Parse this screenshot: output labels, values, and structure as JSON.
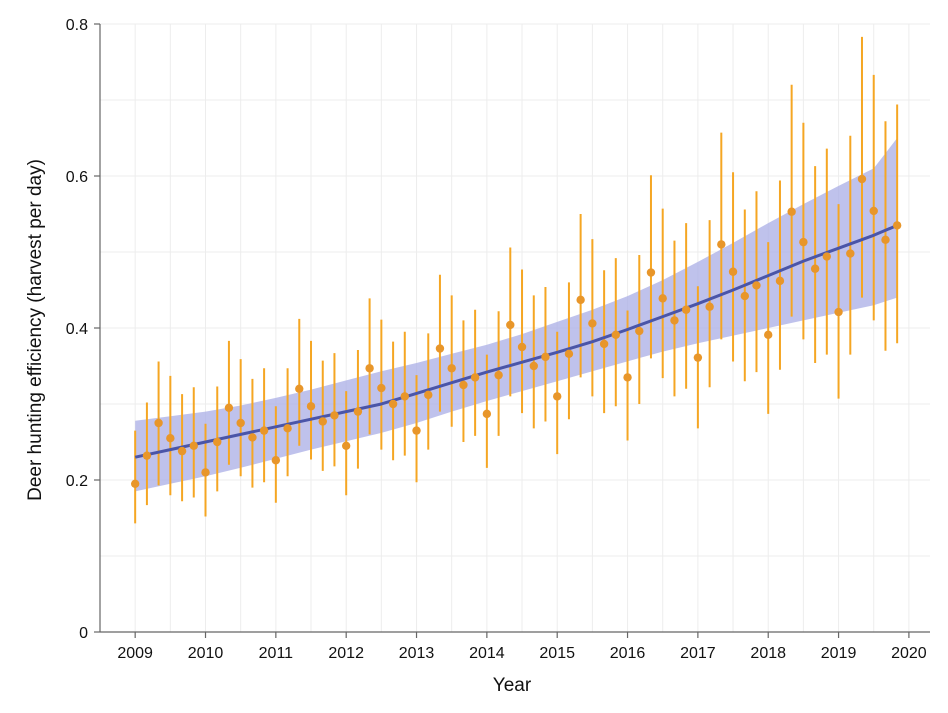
{
  "chart_data": {
    "type": "scatter",
    "xlabel": "Year",
    "ylabel": "Deer hunting efficiency (harvest per day)",
    "xlim": [
      2008.5,
      2020.3
    ],
    "ylim": [
      0,
      0.8
    ],
    "x_ticks": [
      2009,
      2010,
      2011,
      2012,
      2013,
      2014,
      2015,
      2016,
      2017,
      2018,
      2019,
      2020
    ],
    "x_tick_labels": [
      "2009",
      "2010",
      "2011",
      "2012",
      "2013",
      "2014",
      "2015",
      "2016",
      "2017",
      "2018",
      "2019",
      "2020"
    ],
    "y_ticks": [
      0,
      0.2,
      0.4,
      0.6,
      0.8
    ],
    "y_tick_labels": [
      "0",
      "0.2",
      "0.4",
      "0.6",
      "0.8"
    ],
    "grid": true,
    "colors": {
      "points": "#E8962A",
      "errorbars": "#F5A623",
      "trend": "#4A55A8",
      "band": "#A9AEE6",
      "grid": "#EDEDED",
      "axis": "#666666"
    },
    "series": [
      {
        "kind": "observations",
        "x": [
          2009.0,
          2009.167,
          2009.333,
          2009.5,
          2009.667,
          2009.833,
          2010.0,
          2010.167,
          2010.333,
          2010.5,
          2010.667,
          2010.833,
          2011.0,
          2011.167,
          2011.333,
          2011.5,
          2011.667,
          2011.833,
          2012.0,
          2012.167,
          2012.333,
          2012.5,
          2012.667,
          2012.833,
          2013.0,
          2013.167,
          2013.333,
          2013.5,
          2013.667,
          2013.833,
          2014.0,
          2014.167,
          2014.333,
          2014.5,
          2014.667,
          2014.833,
          2015.0,
          2015.167,
          2015.333,
          2015.5,
          2015.667,
          2015.833,
          2016.0,
          2016.167,
          2016.333,
          2016.5,
          2016.667,
          2016.833,
          2017.0,
          2017.167,
          2017.333,
          2017.5,
          2017.667,
          2017.833,
          2018.0,
          2018.167,
          2018.333,
          2018.5,
          2018.667,
          2018.833,
          2019.0,
          2019.167,
          2019.333,
          2019.5,
          2019.667,
          2019.833
        ],
        "y": [
          0.195,
          0.232,
          0.275,
          0.255,
          0.238,
          0.245,
          0.21,
          0.25,
          0.295,
          0.275,
          0.256,
          0.265,
          0.226,
          0.268,
          0.32,
          0.297,
          0.277,
          0.285,
          0.245,
          0.29,
          0.347,
          0.321,
          0.3,
          0.31,
          0.265,
          0.312,
          0.373,
          0.347,
          0.325,
          0.335,
          0.287,
          0.338,
          0.404,
          0.375,
          0.35,
          0.362,
          0.31,
          0.366,
          0.437,
          0.406,
          0.379,
          0.391,
          0.335,
          0.396,
          0.473,
          0.439,
          0.41,
          0.424,
          0.361,
          0.428,
          0.51,
          0.474,
          0.442,
          0.456,
          0.391,
          0.462,
          0.553,
          0.513,
          0.478,
          0.494,
          0.421,
          0.498,
          0.596,
          0.554,
          0.516,
          0.535
        ],
        "low": [
          0.143,
          0.167,
          0.193,
          0.18,
          0.172,
          0.177,
          0.152,
          0.185,
          0.22,
          0.205,
          0.19,
          0.197,
          0.17,
          0.205,
          0.245,
          0.227,
          0.212,
          0.218,
          0.18,
          0.215,
          0.26,
          0.24,
          0.226,
          0.232,
          0.197,
          0.24,
          0.29,
          0.27,
          0.25,
          0.258,
          0.216,
          0.258,
          0.31,
          0.288,
          0.268,
          0.277,
          0.234,
          0.28,
          0.335,
          0.31,
          0.288,
          0.297,
          0.252,
          0.3,
          0.36,
          0.334,
          0.31,
          0.32,
          0.268,
          0.322,
          0.385,
          0.356,
          0.33,
          0.342,
          0.287,
          0.345,
          0.415,
          0.385,
          0.354,
          0.365,
          0.307,
          0.365,
          0.44,
          0.41,
          0.37,
          0.38
        ],
        "high": [
          0.265,
          0.302,
          0.356,
          0.337,
          0.313,
          0.322,
          0.274,
          0.323,
          0.383,
          0.359,
          0.333,
          0.347,
          0.297,
          0.347,
          0.412,
          0.383,
          0.357,
          0.367,
          0.317,
          0.371,
          0.439,
          0.411,
          0.382,
          0.395,
          0.338,
          0.393,
          0.47,
          0.443,
          0.41,
          0.424,
          0.365,
          0.422,
          0.506,
          0.477,
          0.443,
          0.454,
          0.395,
          0.46,
          0.55,
          0.517,
          0.476,
          0.492,
          0.423,
          0.496,
          0.601,
          0.557,
          0.515,
          0.538,
          0.455,
          0.542,
          0.657,
          0.605,
          0.556,
          0.58,
          0.513,
          0.594,
          0.72,
          0.67,
          0.613,
          0.636,
          0.563,
          0.653,
          0.783,
          0.733,
          0.672,
          0.694
        ]
      },
      {
        "kind": "trend",
        "x": [
          2009.0,
          2009.5,
          2010.0,
          2010.5,
          2011.0,
          2011.5,
          2012.0,
          2012.5,
          2013.0,
          2013.5,
          2014.0,
          2014.5,
          2015.0,
          2015.5,
          2016.0,
          2016.5,
          2017.0,
          2017.5,
          2018.0,
          2018.5,
          2019.0,
          2019.5,
          2019.833
        ],
        "y": [
          0.23,
          0.24,
          0.25,
          0.26,
          0.27,
          0.28,
          0.29,
          0.3,
          0.314,
          0.328,
          0.342,
          0.355,
          0.368,
          0.382,
          0.398,
          0.415,
          0.432,
          0.45,
          0.469,
          0.488,
          0.505,
          0.522,
          0.535
        ],
        "low": [
          0.185,
          0.195,
          0.205,
          0.216,
          0.228,
          0.24,
          0.251,
          0.262,
          0.275,
          0.29,
          0.304,
          0.317,
          0.33,
          0.343,
          0.356,
          0.369,
          0.38,
          0.39,
          0.4,
          0.41,
          0.42,
          0.43,
          0.44
        ],
        "high": [
          0.278,
          0.284,
          0.29,
          0.298,
          0.308,
          0.319,
          0.331,
          0.343,
          0.354,
          0.366,
          0.378,
          0.392,
          0.408,
          0.424,
          0.442,
          0.463,
          0.487,
          0.512,
          0.538,
          0.563,
          0.587,
          0.61,
          0.65
        ]
      }
    ]
  }
}
